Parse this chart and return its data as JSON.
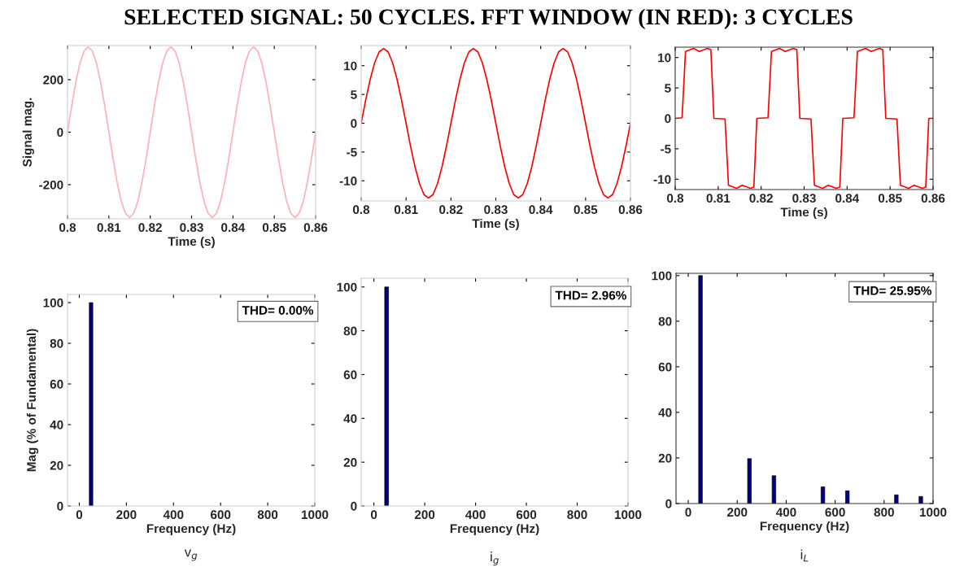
{
  "chart_data": [
    {
      "type": "line",
      "title": "SELECTED SIGNAL: 50 CYCLES. FFT WINDOW (IN RED): 3 CYCLES",
      "xlabel": "Time (s)",
      "ylabel": "Signal mag.",
      "xlim": [
        0.8,
        0.86
      ],
      "xticks": [
        0.8,
        0.81,
        0.82,
        0.83,
        0.84,
        0.85,
        0.86
      ],
      "ylim": [
        -330,
        330
      ],
      "yticks": [
        -200,
        0,
        200
      ],
      "series": [
        {
          "color": "#ffb0b0",
          "x": [
            0.8,
            0.801,
            0.802,
            0.803,
            0.804,
            0.805,
            0.806,
            0.807,
            0.808,
            0.809,
            0.81,
            0.811,
            0.812,
            0.813,
            0.814,
            0.815,
            0.816,
            0.817,
            0.818,
            0.819,
            0.82,
            0.821,
            0.822,
            0.823,
            0.824,
            0.825,
            0.826,
            0.827,
            0.828,
            0.829,
            0.83,
            0.831,
            0.832,
            0.833,
            0.834,
            0.835,
            0.836,
            0.837,
            0.838,
            0.839,
            0.84,
            0.841,
            0.842,
            0.843,
            0.844,
            0.845,
            0.846,
            0.847,
            0.848,
            0.849,
            0.85,
            0.851,
            0.852,
            0.853,
            0.854,
            0.855,
            0.856,
            0.857,
            0.858,
            0.859,
            0.86
          ],
          "values": [
            0,
            100,
            191,
            263,
            309,
            325,
            309,
            263,
            191,
            100,
            0,
            -100,
            -191,
            -263,
            -309,
            -325,
            -309,
            -263,
            -191,
            -100,
            0,
            100,
            191,
            263,
            309,
            325,
            309,
            263,
            191,
            100,
            0,
            -100,
            -191,
            -263,
            -309,
            -325,
            -309,
            -263,
            -191,
            -100,
            0,
            100,
            191,
            263,
            309,
            325,
            309,
            263,
            191,
            100,
            0,
            -100,
            -191,
            -263,
            -309,
            -325,
            -309,
            -263,
            -191,
            -100,
            0
          ]
        }
      ]
    },
    {
      "type": "line",
      "xlabel": "Time (s)",
      "xlim": [
        0.8,
        0.86
      ],
      "xticks": [
        0.8,
        0.81,
        0.82,
        0.83,
        0.84,
        0.85,
        0.86
      ],
      "ylim": [
        -13.5,
        13.5
      ],
      "yticks": [
        -10,
        -5,
        0,
        5,
        10
      ],
      "series": [
        {
          "color": "#ff0000",
          "x": [
            0.8,
            0.801,
            0.802,
            0.803,
            0.804,
            0.805,
            0.806,
            0.807,
            0.808,
            0.809,
            0.81,
            0.811,
            0.812,
            0.813,
            0.814,
            0.815,
            0.816,
            0.817,
            0.818,
            0.819,
            0.82,
            0.821,
            0.822,
            0.823,
            0.824,
            0.825,
            0.826,
            0.827,
            0.828,
            0.829,
            0.83,
            0.831,
            0.832,
            0.833,
            0.834,
            0.835,
            0.836,
            0.837,
            0.838,
            0.839,
            0.84,
            0.841,
            0.842,
            0.843,
            0.844,
            0.845,
            0.846,
            0.847,
            0.848,
            0.849,
            0.85,
            0.851,
            0.852,
            0.853,
            0.854,
            0.855,
            0.856,
            0.857,
            0.858,
            0.859,
            0.86
          ],
          "values": [
            0,
            4.0,
            7.6,
            10.5,
            12.4,
            13,
            12.4,
            10.5,
            7.6,
            4.0,
            0,
            -4.0,
            -7.6,
            -10.5,
            -12.4,
            -13,
            -12.4,
            -10.5,
            -7.6,
            -4.0,
            0,
            4.0,
            7.6,
            10.5,
            12.4,
            13,
            12.4,
            10.5,
            7.6,
            4.0,
            0,
            -4.0,
            -7.6,
            -10.5,
            -12.4,
            -13,
            -12.4,
            -10.5,
            -7.6,
            -4.0,
            0,
            4.0,
            7.6,
            10.5,
            12.4,
            13,
            12.4,
            10.5,
            7.6,
            4.0,
            0,
            -4.0,
            -7.6,
            -10.5,
            -12.4,
            -13,
            -12.4,
            -10.5,
            -7.6,
            -4.0,
            0
          ]
        }
      ]
    },
    {
      "type": "line",
      "xlabel": "Time (s)",
      "xlim": [
        0.8,
        0.86
      ],
      "xticks": [
        0.8,
        0.81,
        0.82,
        0.83,
        0.84,
        0.85,
        0.86
      ],
      "ylim": [
        -11.7,
        11.7
      ],
      "yticks": [
        -10,
        -5,
        0,
        5,
        10
      ],
      "series": [
        {
          "color": "#ff0000",
          "x": [
            0.8,
            0.8016,
            0.8024,
            0.8043,
            0.8056,
            0.8075,
            0.8083,
            0.809,
            0.8116,
            0.8124,
            0.8143,
            0.8156,
            0.8175,
            0.8183,
            0.819,
            0.8216,
            0.8224,
            0.8243,
            0.8256,
            0.8275,
            0.8283,
            0.829,
            0.8316,
            0.8324,
            0.8343,
            0.8356,
            0.8375,
            0.8383,
            0.839,
            0.8416,
            0.8424,
            0.8443,
            0.8456,
            0.8475,
            0.8483,
            0.849,
            0.8516,
            0.8524,
            0.8543,
            0.8556,
            0.8575,
            0.8583,
            0.859,
            0.86
          ],
          "values": [
            0,
            0.1,
            11,
            11.5,
            11.0,
            11.5,
            11.3,
            0,
            -0.1,
            -11,
            -11.5,
            -11.0,
            -11.5,
            -11.3,
            0,
            0.1,
            11,
            11.5,
            11.0,
            11.5,
            11.3,
            0,
            -0.1,
            -11,
            -11.5,
            -11.0,
            -11.5,
            -11.3,
            0,
            0.1,
            11,
            11.5,
            11.0,
            11.5,
            11.3,
            0,
            -0.1,
            -11,
            -11.5,
            -11.0,
            -11.5,
            -11.3,
            0,
            0
          ]
        }
      ]
    },
    {
      "type": "bar",
      "xlabel": "Frequency (Hz)",
      "ylabel": "Mag (% of Fundamental)",
      "xlim": [
        -50,
        1000
      ],
      "xticks": [
        0,
        200,
        400,
        600,
        800,
        1000
      ],
      "ylim": [
        0,
        104
      ],
      "yticks": [
        0,
        20,
        40,
        60,
        80,
        100
      ],
      "x": [
        50
      ],
      "values": [
        100
      ],
      "color": "#000080",
      "annotations": [
        "THD= 0.00%",
        "v$_{g}$"
      ]
    },
    {
      "type": "bar",
      "xlabel": "Frequency (Hz)",
      "xlim": [
        -50,
        1000
      ],
      "xticks": [
        0,
        200,
        400,
        600,
        800,
        1000
      ],
      "ylim": [
        0,
        104
      ],
      "yticks": [
        0,
        20,
        40,
        60,
        80,
        100
      ],
      "x": [
        50
      ],
      "values": [
        100
      ],
      "color": "#000080",
      "annotations": [
        "THD= 2.96%",
        "i$_{g}$"
      ]
    },
    {
      "type": "bar",
      "xlabel": "Frequency (Hz)",
      "xlim": [
        -50,
        1000
      ],
      "xticks": [
        0,
        200,
        400,
        600,
        800,
        1000
      ],
      "ylim": [
        0,
        101
      ],
      "yticks": [
        0,
        20,
        40,
        60,
        80,
        100
      ],
      "x": [
        50,
        250,
        350,
        550,
        650,
        850,
        950
      ],
      "values": [
        100,
        19.7,
        12.2,
        7.3,
        5.6,
        3.8,
        3.1
      ],
      "color": "#000080",
      "annotations": [
        "THD= 25.95%",
        "i$_{L}$"
      ]
    }
  ]
}
